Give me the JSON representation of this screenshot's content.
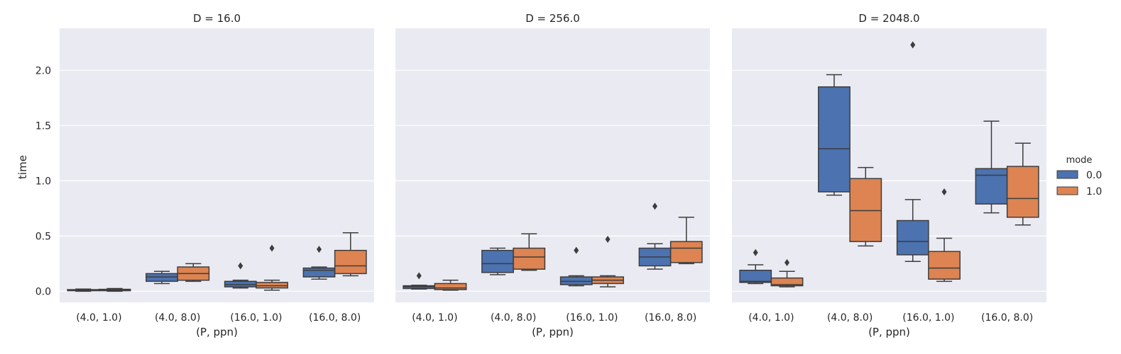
{
  "chart_data": {
    "type": "boxplot",
    "ylabel": "time",
    "xlabel": "(P, ppn)",
    "ylim": [
      -0.1,
      2.38
    ],
    "yticks": [
      "0.0",
      "0.5",
      "1.0",
      "1.5",
      "2.0"
    ],
    "grid": true,
    "legend": {
      "title": "mode",
      "placement": "center-right",
      "entries": [
        {
          "label": "0.0",
          "color": "#4c72b0"
        },
        {
          "label": "1.0",
          "color": "#dd8452"
        }
      ]
    },
    "categories": [
      "(4.0, 1.0)",
      "(4.0, 8.0)",
      "(16.0, 1.0)",
      "(16.0, 8.0)"
    ],
    "panels": [
      {
        "title": "D = 16.0",
        "series": [
          {
            "mode": "0.0",
            "boxes": [
              {
                "whislo": 0.0,
                "q1": 0.005,
                "med": 0.01,
                "q3": 0.015,
                "whishi": 0.02,
                "fliers": []
              },
              {
                "whislo": 0.07,
                "q1": 0.09,
                "med": 0.13,
                "q3": 0.16,
                "whishi": 0.18,
                "fliers": []
              },
              {
                "whislo": 0.03,
                "q1": 0.04,
                "med": 0.06,
                "q3": 0.09,
                "whishi": 0.1,
                "fliers": [
                  0.23
                ]
              },
              {
                "whislo": 0.11,
                "q1": 0.13,
                "med": 0.19,
                "q3": 0.21,
                "whishi": 0.22,
                "fliers": [
                  0.38
                ]
              }
            ]
          },
          {
            "mode": "1.0",
            "boxes": [
              {
                "whislo": 0.0,
                "q1": 0.005,
                "med": 0.01,
                "q3": 0.018,
                "whishi": 0.025,
                "fliers": []
              },
              {
                "whislo": 0.09,
                "q1": 0.1,
                "med": 0.16,
                "q3": 0.22,
                "whishi": 0.25,
                "fliers": []
              },
              {
                "whislo": 0.01,
                "q1": 0.03,
                "med": 0.05,
                "q3": 0.08,
                "whishi": 0.1,
                "fliers": [
                  0.39
                ]
              },
              {
                "whislo": 0.14,
                "q1": 0.16,
                "med": 0.23,
                "q3": 0.37,
                "whishi": 0.53,
                "fliers": []
              }
            ]
          }
        ]
      },
      {
        "title": "D = 256.0",
        "series": [
          {
            "mode": "0.0",
            "boxes": [
              {
                "whislo": 0.02,
                "q1": 0.025,
                "med": 0.04,
                "q3": 0.05,
                "whishi": 0.055,
                "fliers": [
                  0.14
                ]
              },
              {
                "whislo": 0.15,
                "q1": 0.17,
                "med": 0.25,
                "q3": 0.37,
                "whishi": 0.39,
                "fliers": []
              },
              {
                "whislo": 0.05,
                "q1": 0.06,
                "med": 0.09,
                "q3": 0.13,
                "whishi": 0.14,
                "fliers": [
                  0.37
                ]
              },
              {
                "whislo": 0.2,
                "q1": 0.23,
                "med": 0.31,
                "q3": 0.39,
                "whishi": 0.43,
                "fliers": [
                  0.77
                ]
              }
            ]
          },
          {
            "mode": "1.0",
            "boxes": [
              {
                "whislo": 0.01,
                "q1": 0.015,
                "med": 0.03,
                "q3": 0.07,
                "whishi": 0.1,
                "fliers": []
              },
              {
                "whislo": 0.19,
                "q1": 0.2,
                "med": 0.31,
                "q3": 0.39,
                "whishi": 0.52,
                "fliers": []
              },
              {
                "whislo": 0.04,
                "q1": 0.07,
                "med": 0.1,
                "q3": 0.13,
                "whishi": 0.14,
                "fliers": [
                  0.47
                ]
              },
              {
                "whislo": 0.25,
                "q1": 0.26,
                "med": 0.39,
                "q3": 0.45,
                "whishi": 0.67,
                "fliers": []
              }
            ]
          }
        ]
      },
      {
        "title": "D = 2048.0",
        "series": [
          {
            "mode": "0.0",
            "boxes": [
              {
                "whislo": 0.07,
                "q1": 0.08,
                "med": 0.09,
                "q3": 0.19,
                "whishi": 0.24,
                "fliers": [
                  0.35
                ]
              },
              {
                "whislo": 0.87,
                "q1": 0.9,
                "med": 1.29,
                "q3": 1.85,
                "whishi": 1.96,
                "fliers": []
              },
              {
                "whislo": 0.27,
                "q1": 0.33,
                "med": 0.45,
                "q3": 0.64,
                "whishi": 0.83,
                "fliers": [
                  2.23
                ]
              },
              {
                "whislo": 0.71,
                "q1": 0.79,
                "med": 1.05,
                "q3": 1.11,
                "whishi": 1.54,
                "fliers": []
              }
            ]
          },
          {
            "mode": "1.0",
            "boxes": [
              {
                "whislo": 0.04,
                "q1": 0.05,
                "med": 0.06,
                "q3": 0.12,
                "whishi": 0.18,
                "fliers": [
                  0.26
                ]
              },
              {
                "whislo": 0.41,
                "q1": 0.45,
                "med": 0.73,
                "q3": 1.02,
                "whishi": 1.12,
                "fliers": []
              },
              {
                "whislo": 0.09,
                "q1": 0.11,
                "med": 0.21,
                "q3": 0.36,
                "whishi": 0.48,
                "fliers": [
                  0.9
                ]
              },
              {
                "whislo": 0.6,
                "q1": 0.67,
                "med": 0.84,
                "q3": 1.13,
                "whishi": 1.34,
                "fliers": []
              }
            ]
          }
        ]
      }
    ]
  }
}
